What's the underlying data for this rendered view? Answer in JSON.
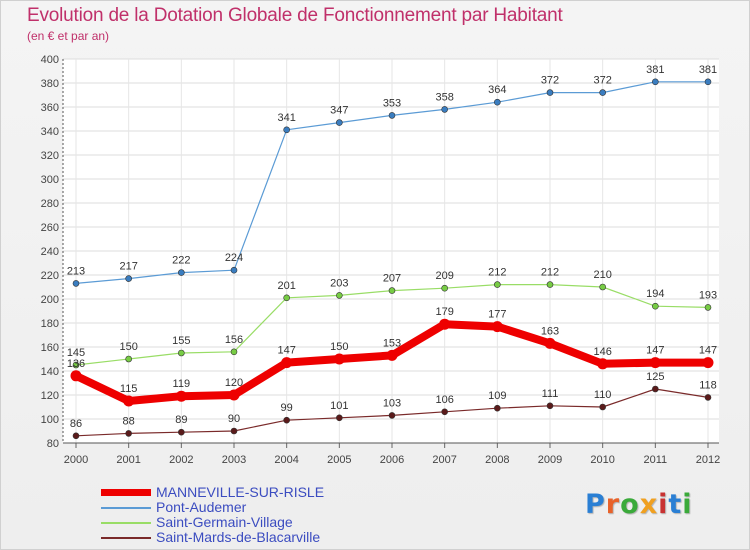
{
  "title": "Evolution de la Dotation Globale de Fonctionnement par Habitant",
  "subtitle": "(en € et par an)",
  "logo": {
    "text": "Proxiti",
    "colors": [
      "#2a7fd4",
      "#e8622a",
      "#3aaa3a",
      "#f0a020",
      "#c83232",
      "#2a7fd4",
      "#3aaa3a"
    ]
  },
  "chart_data": {
    "type": "line",
    "x": [
      "2000",
      "2001",
      "2002",
      "2003",
      "2004",
      "2005",
      "2006",
      "2007",
      "2008",
      "2009",
      "2010",
      "2011",
      "2012"
    ],
    "ylim": [
      80,
      400
    ],
    "yticks": [
      "80",
      "100",
      "120",
      "140",
      "160",
      "180",
      "200",
      "220",
      "240",
      "260",
      "280",
      "300",
      "320",
      "340",
      "360",
      "380",
      "400"
    ],
    "grid": true,
    "legend_position": "bottom-left",
    "series": [
      {
        "name": "MANNEVILLE-SUR-RISLE",
        "color": "#ee0000",
        "dot": "#cc0000",
        "width": 8,
        "values": [
          136,
          115,
          119,
          120,
          147,
          150,
          153,
          179,
          177,
          163,
          146,
          147,
          147
        ]
      },
      {
        "name": "Pont-Audemer",
        "color": "#5b9bd5",
        "dot": "#3a7dc0",
        "width": 1.2,
        "values": [
          213,
          217,
          222,
          224,
          341,
          347,
          353,
          358,
          364,
          372,
          372,
          381,
          381
        ]
      },
      {
        "name": "Saint-Germain-Village",
        "color": "#99dd66",
        "dot": "#77cc44",
        "width": 1.2,
        "values": [
          145,
          150,
          155,
          156,
          201,
          203,
          207,
          209,
          212,
          212,
          210,
          194,
          193
        ]
      },
      {
        "name": "Saint-Mards-de-Blacarville",
        "color": "#7a2a2a",
        "dot": "#5a1a1a",
        "width": 1.2,
        "values": [
          86,
          88,
          89,
          90,
          99,
          101,
          103,
          106,
          109,
          111,
          110,
          125,
          118
        ]
      }
    ]
  }
}
